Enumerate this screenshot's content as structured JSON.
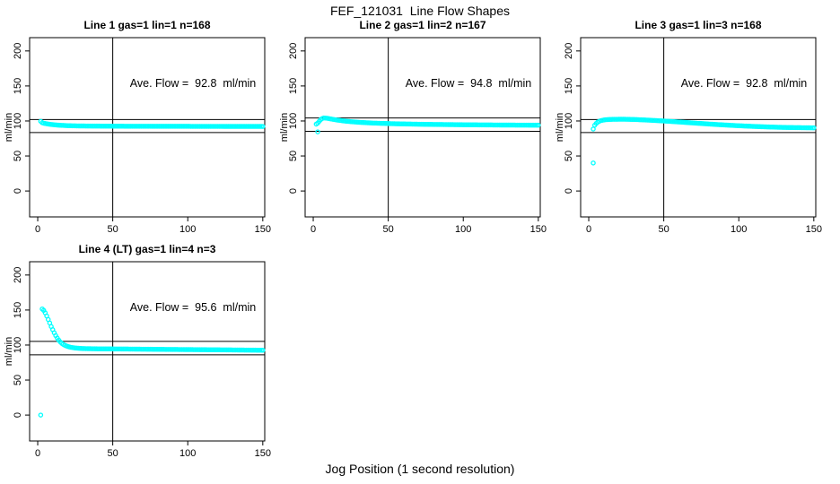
{
  "page": {
    "title": "FEF_121031  Line Flow Shapes",
    "xlabel": "Jog Position (1 second resolution)"
  },
  "colors": {
    "points": "#00FFFF",
    "axis": "#000000",
    "background": "#FFFFFF"
  },
  "chart_data": [
    {
      "type": "scatter",
      "title": "Line 1 gas=1 lin=1 n=168",
      "line": 1,
      "gas": 1,
      "lin": 1,
      "n": 168,
      "annotation": "Ave. Flow =  92.8  ml/min",
      "ave_flow_ml_min": 92.8,
      "ylabel": "ml/min",
      "x_ticks": [
        0,
        50,
        100,
        150
      ],
      "y_ticks": [
        0,
        50,
        100,
        150,
        200
      ],
      "xlim": [
        -5.4,
        151.3
      ],
      "ylim": [
        -37,
        219
      ],
      "vline_x": 50,
      "hlines": [
        102.1,
        83.5
      ],
      "sample_step_x": 1,
      "band_x_range": [
        2,
        150
      ],
      "anchor_points": [
        [
          2,
          99.5
        ],
        [
          3,
          97.5
        ],
        [
          4,
          96.8
        ],
        [
          6,
          96
        ],
        [
          8,
          95.3
        ],
        [
          10,
          94.8
        ],
        [
          14,
          94
        ],
        [
          20,
          93.3
        ],
        [
          28,
          92.9
        ],
        [
          40,
          92.7
        ],
        [
          60,
          92.5
        ],
        [
          90,
          92.4
        ],
        [
          120,
          92.3
        ],
        [
          150,
          92.2
        ]
      ],
      "outlier_points": []
    },
    {
      "type": "scatter",
      "title": "Line 2 gas=1 lin=2 n=167",
      "line": 2,
      "gas": 1,
      "lin": 2,
      "n": 167,
      "annotation": "Ave. Flow =  94.8  ml/min",
      "ave_flow_ml_min": 94.8,
      "ylabel": "ml/min",
      "x_ticks": [
        0,
        50,
        100,
        150
      ],
      "y_ticks": [
        0,
        50,
        100,
        150,
        200
      ],
      "xlim": [
        -5.4,
        151.3
      ],
      "ylim": [
        -37,
        219
      ],
      "vline_x": 50,
      "hlines": [
        104.3,
        85.3
      ],
      "sample_step_x": 1,
      "band_x_range": [
        2,
        150
      ],
      "anchor_points": [
        [
          2,
          95.5
        ],
        [
          3,
          97
        ],
        [
          4,
          99.5
        ],
        [
          5,
          102
        ],
        [
          6,
          103.5
        ],
        [
          7,
          104.3
        ],
        [
          9,
          104
        ],
        [
          12,
          102.8
        ],
        [
          16,
          101.3
        ],
        [
          22,
          99.6
        ],
        [
          30,
          98.2
        ],
        [
          40,
          97
        ],
        [
          55,
          96
        ],
        [
          75,
          95.2
        ],
        [
          100,
          94.6
        ],
        [
          125,
          94.2
        ],
        [
          150,
          94
        ]
      ],
      "outlier_points": [
        [
          3,
          84.5
        ]
      ]
    },
    {
      "type": "scatter",
      "title": "Line 3 gas=1 lin=3 n=168",
      "line": 3,
      "gas": 1,
      "lin": 3,
      "n": 168,
      "annotation": "Ave. Flow =  92.8  ml/min",
      "ave_flow_ml_min": 92.8,
      "ylabel": "ml/min",
      "x_ticks": [
        0,
        50,
        100,
        150
      ],
      "y_ticks": [
        0,
        50,
        100,
        150,
        200
      ],
      "xlim": [
        -5.4,
        151.3
      ],
      "ylim": [
        -37,
        219
      ],
      "vline_x": 50,
      "hlines": [
        102.1,
        83.5
      ],
      "sample_step_x": 1,
      "band_x_range": [
        4,
        150
      ],
      "anchor_points": [
        [
          4,
          94
        ],
        [
          5,
          96.5
        ],
        [
          6,
          98.5
        ],
        [
          8,
          100.5
        ],
        [
          11,
          101.8
        ],
        [
          16,
          102.4
        ],
        [
          24,
          102.5
        ],
        [
          32,
          102
        ],
        [
          40,
          101.2
        ],
        [
          50,
          100
        ],
        [
          60,
          98.6
        ],
        [
          72,
          96.8
        ],
        [
          85,
          95
        ],
        [
          100,
          93.2
        ],
        [
          115,
          91.8
        ],
        [
          130,
          90.8
        ],
        [
          150,
          90.2
        ]
      ],
      "outlier_points": [
        [
          3,
          40
        ],
        [
          3,
          88.5
        ]
      ]
    },
    {
      "type": "scatter",
      "title": "Line 4 (LT) gas=1 lin=4 n=3",
      "line": 4,
      "gas": 1,
      "lin": 4,
      "n": 3,
      "annotation": "Ave. Flow =  95.6  ml/min",
      "ave_flow_ml_min": 95.6,
      "ylabel": "ml/min",
      "x_ticks": [
        0,
        50,
        100,
        150
      ],
      "y_ticks": [
        0,
        50,
        100,
        150,
        200
      ],
      "xlim": [
        -5.4,
        151.3
      ],
      "ylim": [
        -37,
        219
      ],
      "vline_x": 50,
      "hlines": [
        105.2,
        86.0
      ],
      "sample_step_x": 1,
      "band_x_range": [
        3,
        150
      ],
      "anchor_points": [
        [
          3,
          151.5
        ],
        [
          4,
          149.5
        ],
        [
          5,
          146
        ],
        [
          6,
          141.5
        ],
        [
          7,
          136.5
        ],
        [
          8,
          131.5
        ],
        [
          9,
          126.5
        ],
        [
          10,
          122
        ],
        [
          11,
          117.5
        ],
        [
          12,
          113.5
        ],
        [
          13,
          110
        ],
        [
          14,
          107
        ],
        [
          15,
          104.5
        ],
        [
          16,
          102.5
        ],
        [
          17,
          101
        ],
        [
          18,
          99.8
        ],
        [
          19,
          98.8
        ],
        [
          20,
          98
        ],
        [
          22,
          96.8
        ],
        [
          25,
          95.8
        ],
        [
          30,
          95
        ],
        [
          40,
          94.6
        ],
        [
          60,
          94.3
        ],
        [
          90,
          93.7
        ],
        [
          120,
          93.2
        ],
        [
          150,
          92.6
        ]
      ],
      "outlier_points": [
        [
          2,
          0
        ]
      ]
    }
  ]
}
